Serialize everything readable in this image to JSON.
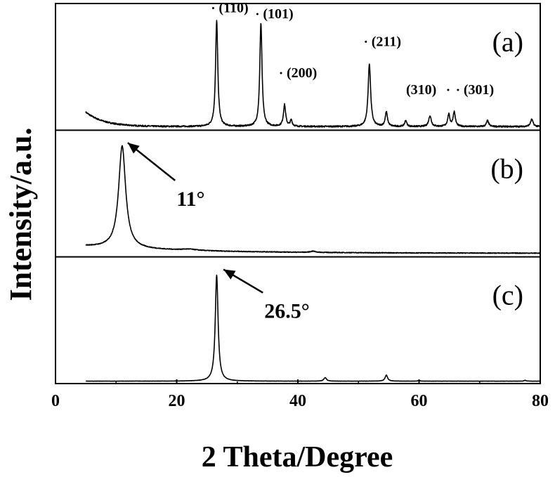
{
  "chart_data": {
    "type": "line",
    "xlabel": "2 Theta/Degree",
    "ylabel": "Intensity/a.u.",
    "xlim": [
      0,
      80
    ],
    "x_ticks": [
      "0",
      "20",
      "40",
      "60",
      "80"
    ],
    "grid": false,
    "panels": [
      {
        "label": "(a)",
        "peaks": [
          {
            "x": 26.6,
            "h": 0.88,
            "w": 0.22
          },
          {
            "x": 33.9,
            "h": 0.86,
            "w": 0.22
          },
          {
            "x": 37.8,
            "h": 0.18,
            "w": 0.22
          },
          {
            "x": 38.9,
            "h": 0.05,
            "w": 0.2
          },
          {
            "x": 51.8,
            "h": 0.52,
            "w": 0.25
          },
          {
            "x": 54.6,
            "h": 0.12,
            "w": 0.22
          },
          {
            "x": 57.8,
            "h": 0.05,
            "w": 0.2
          },
          {
            "x": 61.8,
            "h": 0.09,
            "w": 0.25
          },
          {
            "x": 64.9,
            "h": 0.1,
            "w": 0.22
          },
          {
            "x": 65.8,
            "h": 0.12,
            "w": 0.22
          },
          {
            "x": 71.3,
            "h": 0.05,
            "w": 0.22
          },
          {
            "x": 78.6,
            "h": 0.06,
            "w": 0.25
          }
        ],
        "annotations": [
          {
            "text": "(110)",
            "x": 26.6,
            "y": 0.98,
            "dot": true
          },
          {
            "text": "(101)",
            "x": 33.9,
            "y": 0.93,
            "dot": true
          },
          {
            "text": "(200)",
            "x": 37.8,
            "y": 0.44,
            "dot": true
          },
          {
            "text": "(211)",
            "x": 51.8,
            "y": 0.7,
            "dot": true
          },
          {
            "text": "(310)",
            "x": 57.5,
            "y": 0.3,
            "dot": false
          },
          {
            "text": "(301)",
            "x": 67.0,
            "y": 0.3,
            "dot": true
          }
        ]
      },
      {
        "label": "(b)",
        "peaks": [
          {
            "x": 11.0,
            "h": 0.85,
            "w": 0.7
          },
          {
            "x": 22.0,
            "h": 0.01,
            "w": 1.5
          },
          {
            "x": 42.5,
            "h": 0.01,
            "w": 0.5
          }
        ],
        "annotations": [
          {
            "text": "11°",
            "x": 11.0,
            "y": 0.96,
            "arrow": true,
            "tx": 19.5,
            "ty": 0.6
          }
        ]
      },
      {
        "label": "(c)",
        "peaks": [
          {
            "x": 26.6,
            "h": 0.88,
            "w": 0.28
          },
          {
            "x": 44.5,
            "h": 0.03,
            "w": 0.25
          },
          {
            "x": 54.6,
            "h": 0.05,
            "w": 0.25
          },
          {
            "x": 60.0,
            "h": 0.005,
            "w": 0.2
          },
          {
            "x": 77.5,
            "h": 0.007,
            "w": 0.2
          }
        ],
        "annotations": [
          {
            "text": "26.5°",
            "x": 26.8,
            "y": 0.96,
            "arrow": true,
            "tx": 34.0,
            "ty": 0.72
          }
        ]
      }
    ]
  }
}
